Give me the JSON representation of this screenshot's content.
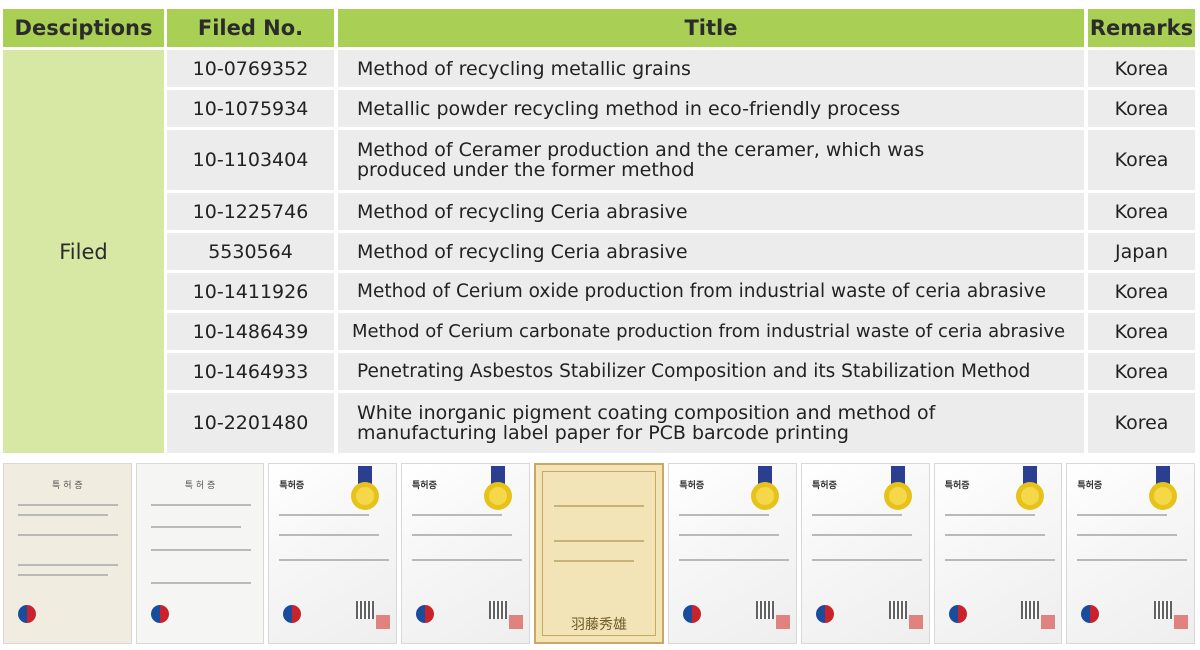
{
  "headers": {
    "desc": "Desciptions",
    "no": "Filed No.",
    "title": "Title",
    "remarks": "Remarks"
  },
  "group_label": "Filed",
  "rows": [
    {
      "no": "10-0769352",
      "title": "Method of recycling metallic grains",
      "remarks": "Korea"
    },
    {
      "no": "10-1075934",
      "title": "Metallic powder recycling method in eco-friendly process",
      "remarks": "Korea"
    },
    {
      "no": "10-1103404",
      "title": "Method of Ceramer production and the ceramer, which was produced under the former method",
      "remarks": "Korea"
    },
    {
      "no": "10-1225746",
      "title": "Method of recycling Ceria abrasive",
      "remarks": "Korea"
    },
    {
      "no": "5530564",
      "title": "Method of recycling Ceria abrasive",
      "remarks": "Japan"
    },
    {
      "no": "10-1411926",
      "title": "Method of Cerium oxide production from industrial waste of ceria abrasive",
      "remarks": "Korea"
    },
    {
      "no": "10-1486439",
      "title": "Method of Cerium carbonate production from industrial waste of ceria abrasive",
      "remarks": "Korea"
    },
    {
      "no": "10-1464933",
      "title": "Penetrating Asbestos Stabilizer Composition and its Stabilization Method",
      "remarks": "Korea"
    },
    {
      "no": "10-2201480",
      "title": "White inorganic pigment coating composition and method of manufacturing label paper for PCB barcode printing",
      "remarks": "Korea"
    }
  ],
  "certificates": {
    "heading_korean": "특 허 증",
    "heading_korean_new": "특허증",
    "japan_signature": "羽藤秀雄"
  },
  "colors": {
    "header_green": "#a9cf55",
    "filed_green": "#d6e8a4",
    "row_gray": "#ececec"
  }
}
